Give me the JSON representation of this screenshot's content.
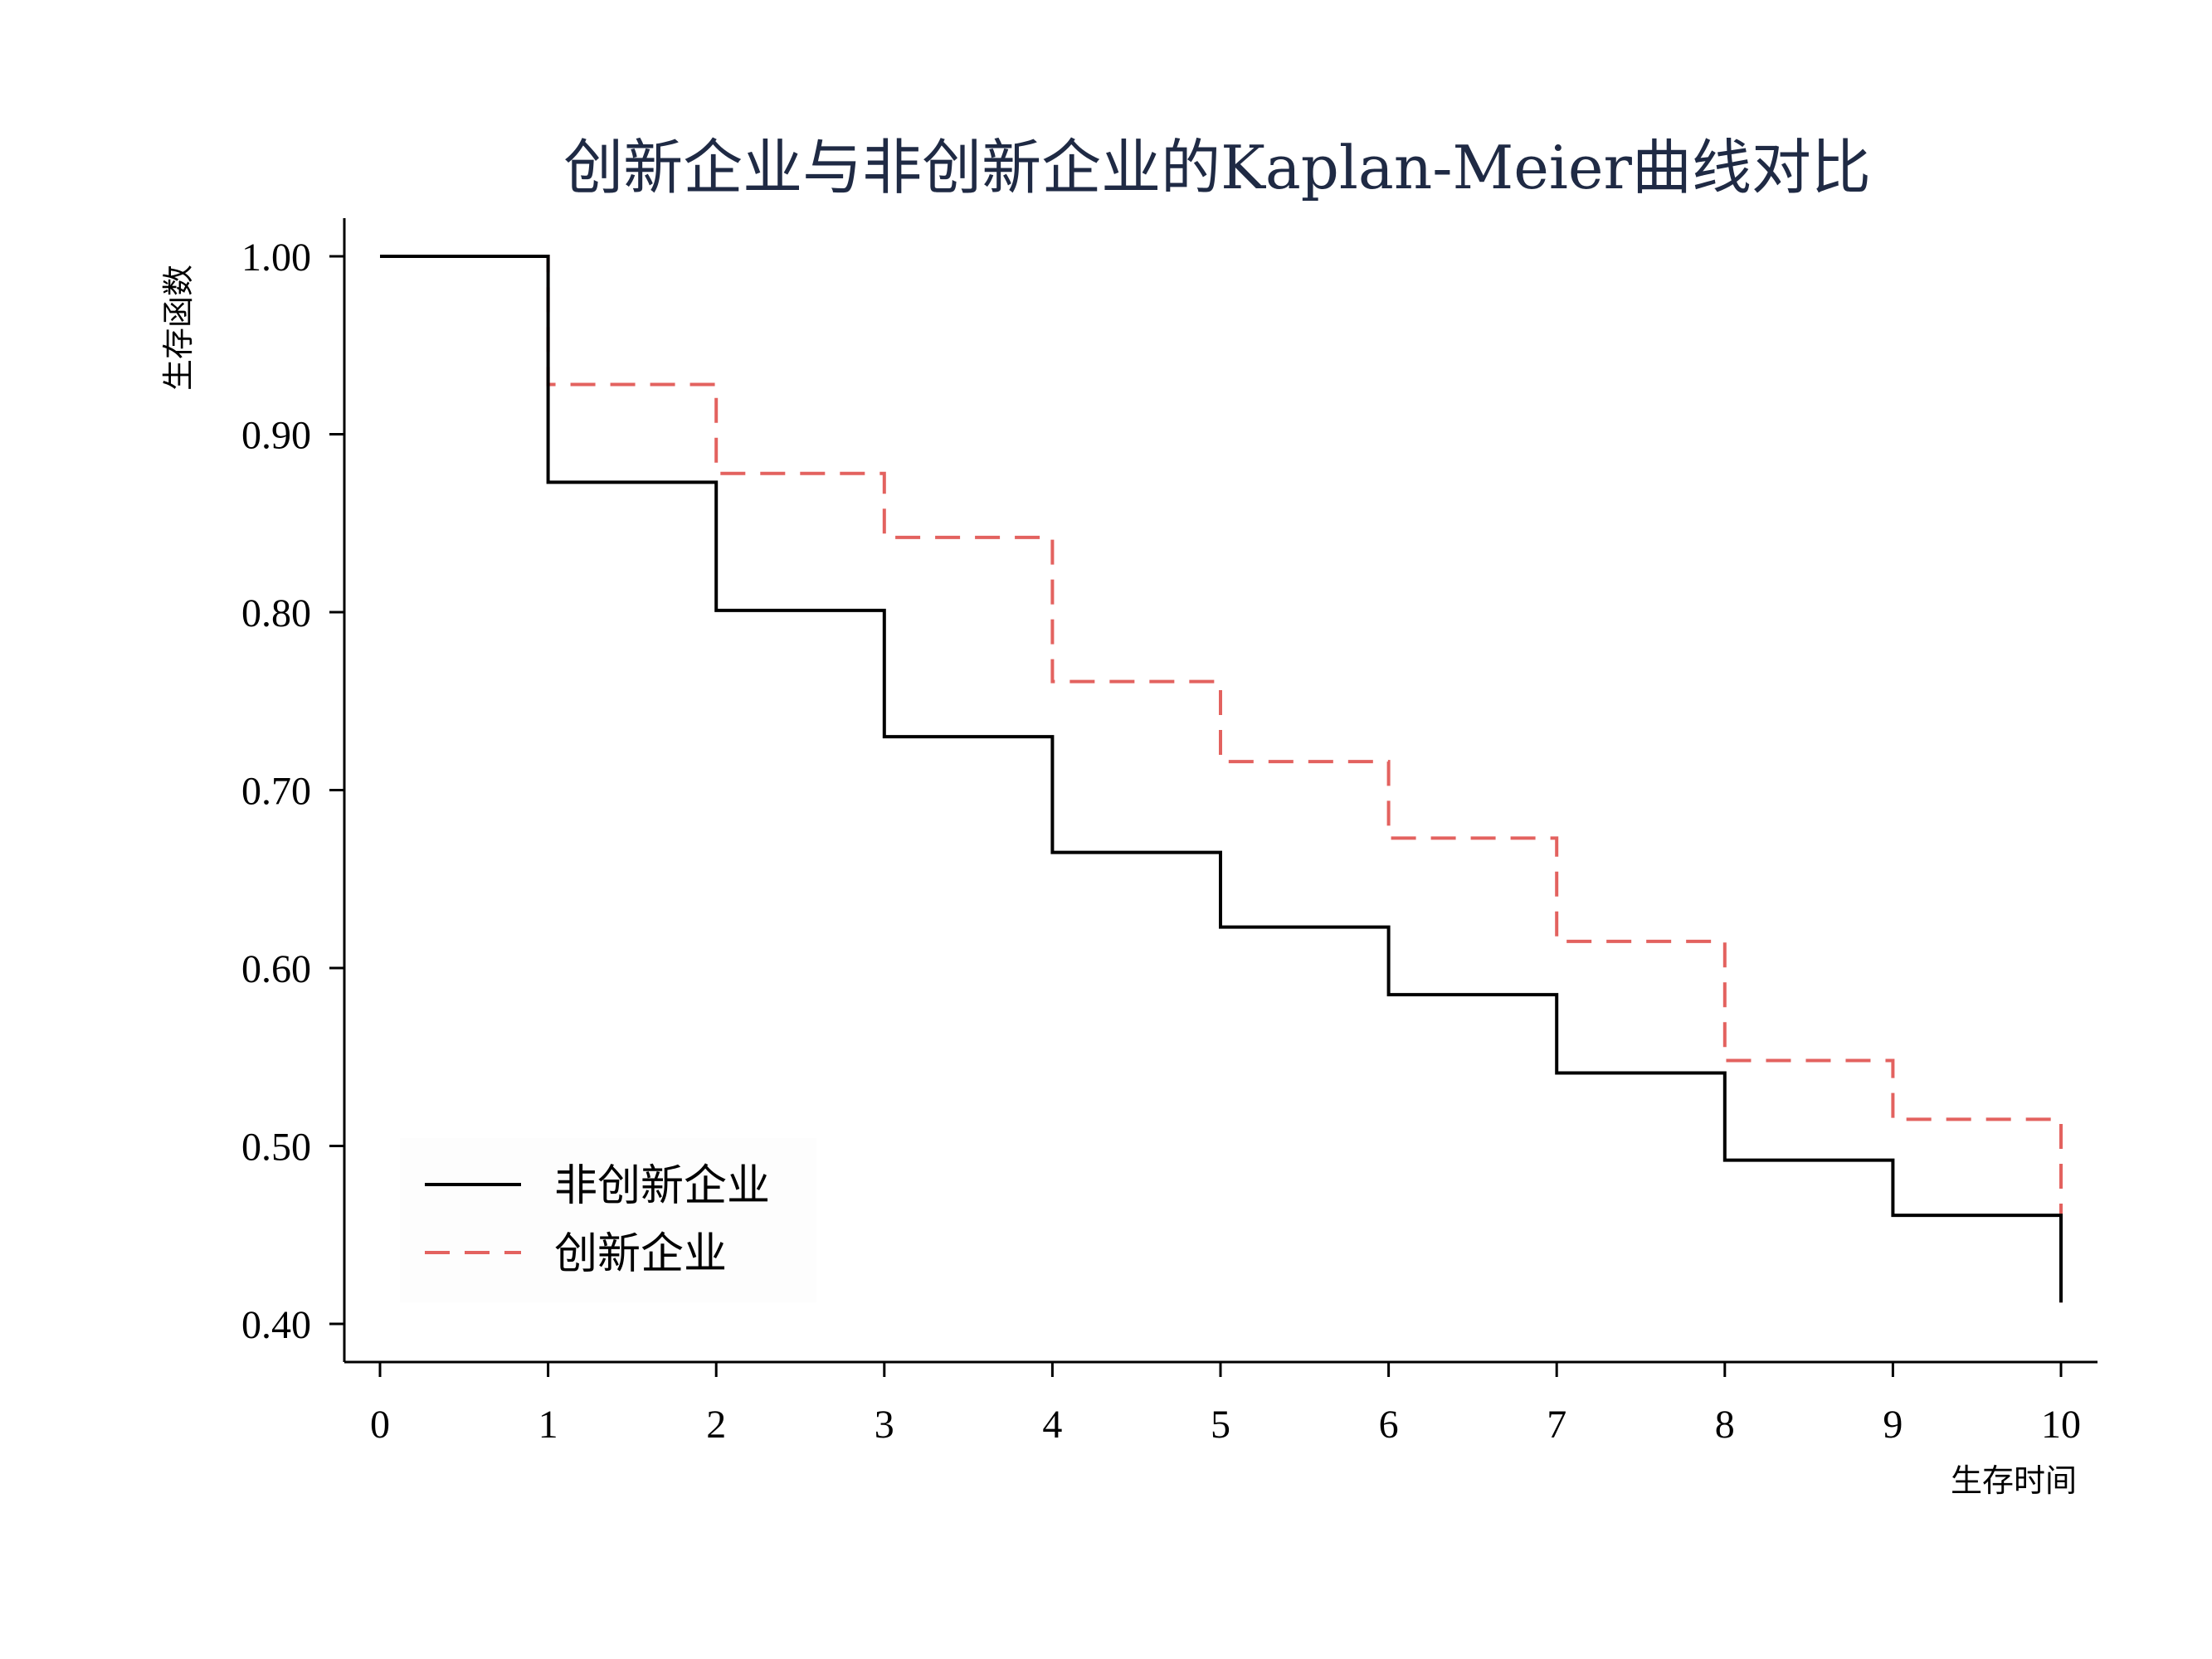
{
  "chart_data": {
    "type": "line",
    "step": true,
    "title": "创新企业与非创新企业的Kaplan-Meier曲线对比",
    "xlabel": "生存时间",
    "ylabel": "生存函数",
    "xlim": [
      0,
      10
    ],
    "ylim": [
      0.4,
      1.0
    ],
    "xticks": [
      "0",
      "1",
      "2",
      "3",
      "4",
      "5",
      "6",
      "7",
      "8",
      "9",
      "10"
    ],
    "yticks": [
      "0.40",
      "0.50",
      "0.60",
      "0.70",
      "0.80",
      "0.90",
      "1.00"
    ],
    "grid": false,
    "legend_position": "lower-left",
    "x": [
      0,
      1,
      2,
      3,
      4,
      5,
      6,
      7,
      8,
      9,
      10
    ],
    "series": [
      {
        "name": "非创新企业",
        "values": [
          1.0,
          0.873,
          0.801,
          0.73,
          0.665,
          0.623,
          0.585,
          0.541,
          0.492,
          0.461,
          0.412
        ],
        "color": "#000000",
        "style": "solid"
      },
      {
        "name": "创新企业",
        "values": [
          1.0,
          0.928,
          0.878,
          0.842,
          0.761,
          0.716,
          0.673,
          0.615,
          0.548,
          0.515,
          0.412
        ],
        "color": "#e3625f",
        "style": "dashed"
      }
    ]
  }
}
